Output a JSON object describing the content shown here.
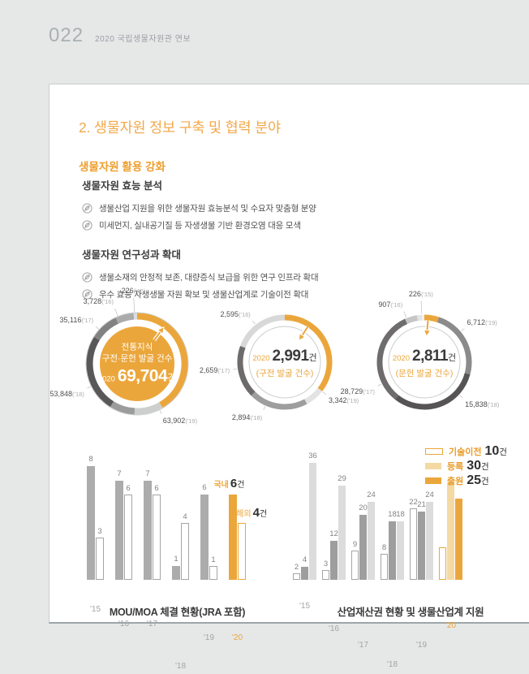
{
  "header": {
    "page_number": "022",
    "doc_title": "2020 국립생물자원관 연보"
  },
  "content": {
    "title": "2. 생물자원 정보 구축 및 협력 분야",
    "section_title": "생물자원 활용 강화",
    "subsections": [
      {
        "heading": "생물자원 효능 분석",
        "bullets": [
          "생물산업 지원을 위한 생물자원 효능분석 및 수요자 맞춤형 분양",
          "미세먼지, 실내공기질 등 자생생물 기반 환경오염 대응 모색"
        ]
      },
      {
        "heading": "생물자원 연구성과 확대",
        "bullets": [
          "생물소재의 안정적 보존, 대량증식 보급을 위한 연구 인프라 확대",
          "우수 효능 자생생물 자원 확보 및 생물산업계로 기술이전 확대"
        ]
      }
    ]
  },
  "colors": {
    "accent_orange": "#EBA63B",
    "accent_tan": "#F4D9A4",
    "legend_orange_text": "#E89C28",
    "bar_gray": "#ACACAC",
    "bar_gray_mid": "#9E9E9F",
    "bar_gray_light": "#DCDCDC",
    "donut_dark": "#595757",
    "page_bg": "#E6E8E8"
  },
  "chart_data": [
    {
      "type": "donut",
      "name": "전통지식 구전·문헌 발굴 건수",
      "center": {
        "title_lines": [
          "전통지식",
          "구전·문헌 발굴 건수"
        ],
        "year": "2020",
        "value": "69,704",
        "unit": "건",
        "style": "filled"
      },
      "points": [
        {
          "year": "('15)",
          "display": "226",
          "value": 226,
          "angle": 357,
          "line": 18
        },
        {
          "year": "('16)",
          "display": "3,728",
          "value": 3728,
          "angle": 338,
          "line": 10
        },
        {
          "year": "('17)",
          "display": "35,116",
          "value": 35116,
          "angle": 312,
          "line": 5
        },
        {
          "year": "('18)",
          "display": "53,848",
          "value": 53848,
          "angle": 244,
          "line": 5
        },
        {
          "year": "('19)",
          "display": "63,902",
          "value": 63902,
          "angle": 154,
          "line": 5
        }
      ],
      "segments": [
        {
          "from": 0,
          "to": 150,
          "color": "#EBA63B"
        },
        {
          "from": 150,
          "to": 183,
          "color": "#CDCECE"
        },
        {
          "from": 183,
          "to": 212,
          "color": "#9C9C9C"
        },
        {
          "from": 212,
          "to": 302,
          "color": "#595757"
        },
        {
          "from": 302,
          "to": 335,
          "color": "#828282"
        },
        {
          "from": 335,
          "to": 356,
          "color": "#ABABAB"
        },
        {
          "from": 356,
          "to": 360,
          "color": "#DCDCDC"
        }
      ],
      "arrow": {
        "angle": 36,
        "dir": "out"
      }
    },
    {
      "type": "donut",
      "name": "구전 발굴 건수",
      "center": {
        "year": "2020",
        "value": "2,991",
        "unit": "건",
        "subtitle": "(구전 발굴 건수)",
        "style": "plain"
      },
      "points": [
        {
          "year": "('16)",
          "display": "2,595",
          "value": 2595,
          "angle": 322,
          "line": 5
        },
        {
          "year": "('17)",
          "display": "2,659",
          "value": 2659,
          "angle": 262,
          "line": 5
        },
        {
          "year": "('18)",
          "display": "2,894",
          "value": 2894,
          "angle": 204,
          "line": 5
        },
        {
          "year": "('19)",
          "display": "3,342",
          "value": 3342,
          "angle": 128,
          "line": 5
        }
      ],
      "segments": [
        {
          "from": 0,
          "to": 128,
          "color": "#EBA63B"
        },
        {
          "from": 128,
          "to": 152,
          "color": "#E3E3E3"
        },
        {
          "from": 152,
          "to": 225,
          "color": "#9E9E9F"
        },
        {
          "from": 225,
          "to": 290,
          "color": "#6D6B6B"
        },
        {
          "from": 290,
          "to": 360,
          "color": "#D8D8D8"
        }
      ],
      "arrow": {
        "angle": 33,
        "dir": "in"
      }
    },
    {
      "type": "donut",
      "name": "문헌 발굴 건수",
      "center": {
        "year": "2020",
        "value": "2,811",
        "unit": "건",
        "subtitle": "(문헌 발굴 건수)",
        "style": "plain"
      },
      "points": [
        {
          "year": "('15)",
          "display": "226",
          "value": 226,
          "angle": 357,
          "line": 16
        },
        {
          "year": "('16)",
          "display": "907",
          "value": 907,
          "angle": 338,
          "line": 8
        },
        {
          "year": "('17)",
          "display": "28,729",
          "value": 28729,
          "angle": 243,
          "line": 5
        },
        {
          "year": "('18)",
          "display": "15,838",
          "value": 15838,
          "angle": 133,
          "line": 5
        },
        {
          "year": "('19)",
          "display": "6,712",
          "value": 6712,
          "angle": 50,
          "line": 5
        }
      ],
      "segments": [
        {
          "from": 0,
          "to": 18,
          "color": "#EBA63B"
        },
        {
          "from": 18,
          "to": 105,
          "color": "#8B8B8B"
        },
        {
          "from": 105,
          "to": 218,
          "color": "#565454"
        },
        {
          "from": 218,
          "to": 336,
          "color": "#6E6C6C"
        },
        {
          "from": 336,
          "to": 351,
          "color": "#C6C6C6"
        },
        {
          "from": 351,
          "to": 357,
          "color": "#E4E4E4"
        },
        {
          "from": 357,
          "to": 360,
          "color": "#F0F0F0"
        }
      ],
      "arrow": {
        "angle": 5,
        "dir": "in"
      }
    },
    {
      "type": "bar",
      "title": "MOU/MOA 체결 현황(JRA 포함)",
      "categories": [
        "'15",
        "'16",
        "'17",
        "'18",
        "'19",
        "'20"
      ],
      "series": [
        {
          "name": "국내",
          "values": [
            8,
            7,
            7,
            1,
            6,
            6
          ]
        },
        {
          "name": "해외",
          "values": [
            3,
            6,
            6,
            4,
            1,
            4
          ]
        }
      ],
      "highlight_category": "'20",
      "annotations": [
        {
          "series": "국내",
          "label": "국내",
          "num": "6",
          "unit": "건",
          "label_color": "#EFA93C"
        },
        {
          "series": "해외",
          "label": "해외",
          "num": "4",
          "unit": "건",
          "label_color": "#F2C279"
        }
      ],
      "ylim": [
        0,
        8
      ]
    },
    {
      "type": "bar",
      "title": "산업재산권 현황 및 생물산업계 지원",
      "categories": [
        "'15",
        "'16",
        "'17",
        "'18",
        "'19",
        "'20"
      ],
      "series": [
        {
          "name": "기술이전",
          "values": [
            2,
            3,
            9,
            8,
            22,
            10
          ]
        },
        {
          "name": "등록",
          "values": [
            4,
            12,
            20,
            18,
            21,
            30
          ]
        },
        {
          "name": "출원",
          "values": [
            36,
            29,
            24,
            18,
            24,
            25
          ]
        }
      ],
      "highlight_category": "'20",
      "legend": {
        "position": "top-right",
        "items": [
          {
            "label": "기술이전",
            "num": "10",
            "unit": "건",
            "swatch": "outline"
          },
          {
            "label": "등록",
            "num": "30",
            "unit": "건",
            "swatch": "tan"
          },
          {
            "label": "출원",
            "num": "25",
            "unit": "건",
            "swatch": "orange"
          }
        ]
      },
      "ylim": [
        0,
        36
      ]
    }
  ]
}
